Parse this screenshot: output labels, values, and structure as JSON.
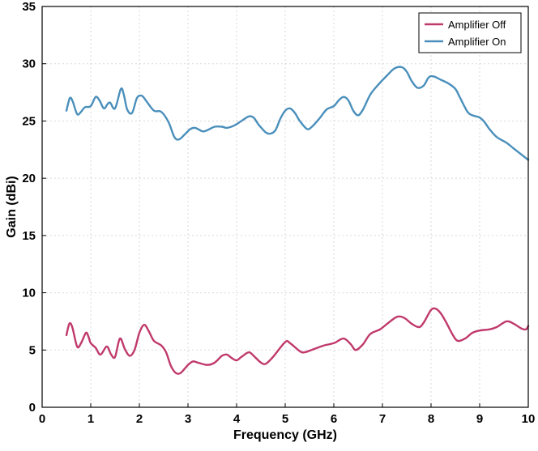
{
  "chart_data": {
    "type": "line",
    "title": "",
    "xlabel": "Frequency (GHz)",
    "ylabel": "Gain (dBi)",
    "xlim": [
      0,
      10
    ],
    "ylim": [
      0,
      35
    ],
    "x_ticks": [
      0,
      1,
      2,
      3,
      4,
      5,
      6,
      7,
      8,
      9,
      10
    ],
    "y_ticks": [
      0,
      5,
      10,
      15,
      20,
      25,
      30,
      35
    ],
    "x_tick_labels": [
      "0",
      "1",
      "2",
      "3",
      "4",
      "5",
      "6",
      "7",
      "8",
      "9",
      "10"
    ],
    "y_tick_labels": [
      "0",
      "5",
      "10",
      "15",
      "20",
      "25",
      "30",
      "35"
    ],
    "grid": true,
    "legend_position": "top-right",
    "series": [
      {
        "name": "Amplifier Off",
        "color": "#c0396b",
        "points": [
          [
            0.5,
            6.3
          ],
          [
            0.56,
            7.3
          ],
          [
            0.62,
            7.0
          ],
          [
            0.72,
            5.3
          ],
          [
            0.8,
            5.6
          ],
          [
            0.9,
            6.5
          ],
          [
            0.95,
            6.2
          ],
          [
            1.0,
            5.6
          ],
          [
            1.1,
            5.2
          ],
          [
            1.2,
            4.6
          ],
          [
            1.33,
            5.3
          ],
          [
            1.42,
            4.6
          ],
          [
            1.5,
            4.4
          ],
          [
            1.6,
            6.0
          ],
          [
            1.7,
            5.1
          ],
          [
            1.8,
            4.5
          ],
          [
            1.9,
            5.0
          ],
          [
            2.0,
            6.5
          ],
          [
            2.1,
            7.2
          ],
          [
            2.2,
            6.6
          ],
          [
            2.3,
            5.8
          ],
          [
            2.45,
            5.4
          ],
          [
            2.55,
            4.8
          ],
          [
            2.65,
            3.6
          ],
          [
            2.75,
            3.0
          ],
          [
            2.85,
            3.0
          ],
          [
            3.0,
            3.7
          ],
          [
            3.1,
            4.0
          ],
          [
            3.2,
            3.9
          ],
          [
            3.4,
            3.7
          ],
          [
            3.55,
            3.9
          ],
          [
            3.7,
            4.5
          ],
          [
            3.8,
            4.6
          ],
          [
            3.9,
            4.3
          ],
          [
            4.0,
            4.1
          ],
          [
            4.1,
            4.4
          ],
          [
            4.25,
            4.8
          ],
          [
            4.35,
            4.5
          ],
          [
            4.5,
            3.9
          ],
          [
            4.6,
            3.8
          ],
          [
            4.75,
            4.4
          ],
          [
            5.0,
            5.7
          ],
          [
            5.1,
            5.6
          ],
          [
            5.3,
            4.9
          ],
          [
            5.4,
            4.8
          ],
          [
            5.6,
            5.1
          ],
          [
            5.8,
            5.4
          ],
          [
            6.0,
            5.6
          ],
          [
            6.2,
            6.0
          ],
          [
            6.35,
            5.5
          ],
          [
            6.45,
            5.0
          ],
          [
            6.6,
            5.5
          ],
          [
            6.75,
            6.4
          ],
          [
            6.95,
            6.8
          ],
          [
            7.1,
            7.3
          ],
          [
            7.3,
            7.9
          ],
          [
            7.45,
            7.8
          ],
          [
            7.6,
            7.3
          ],
          [
            7.75,
            7.0
          ],
          [
            7.85,
            7.4
          ],
          [
            8.0,
            8.5
          ],
          [
            8.1,
            8.6
          ],
          [
            8.2,
            8.2
          ],
          [
            8.3,
            7.5
          ],
          [
            8.45,
            6.3
          ],
          [
            8.55,
            5.8
          ],
          [
            8.7,
            6.0
          ],
          [
            8.85,
            6.5
          ],
          [
            9.0,
            6.7
          ],
          [
            9.2,
            6.8
          ],
          [
            9.35,
            7.0
          ],
          [
            9.55,
            7.5
          ],
          [
            9.7,
            7.3
          ],
          [
            9.85,
            6.9
          ],
          [
            9.95,
            6.8
          ],
          [
            10.0,
            7.1
          ]
        ]
      },
      {
        "name": "Amplifier On",
        "color": "#4a8fbb",
        "points": [
          [
            0.5,
            25.9
          ],
          [
            0.57,
            27.0
          ],
          [
            0.63,
            26.7
          ],
          [
            0.72,
            25.6
          ],
          [
            0.8,
            25.8
          ],
          [
            0.88,
            26.2
          ],
          [
            1.0,
            26.3
          ],
          [
            1.1,
            27.1
          ],
          [
            1.18,
            26.8
          ],
          [
            1.27,
            26.1
          ],
          [
            1.35,
            26.5
          ],
          [
            1.4,
            26.6
          ],
          [
            1.5,
            26.1
          ],
          [
            1.62,
            27.8
          ],
          [
            1.68,
            27.3
          ],
          [
            1.75,
            26.0
          ],
          [
            1.85,
            25.7
          ],
          [
            1.95,
            27.0
          ],
          [
            2.05,
            27.2
          ],
          [
            2.15,
            26.7
          ],
          [
            2.3,
            25.9
          ],
          [
            2.45,
            25.8
          ],
          [
            2.6,
            24.9
          ],
          [
            2.72,
            23.6
          ],
          [
            2.82,
            23.4
          ],
          [
            2.95,
            23.9
          ],
          [
            3.05,
            24.3
          ],
          [
            3.15,
            24.4
          ],
          [
            3.3,
            24.1
          ],
          [
            3.4,
            24.2
          ],
          [
            3.55,
            24.5
          ],
          [
            3.7,
            24.5
          ],
          [
            3.8,
            24.4
          ],
          [
            3.95,
            24.6
          ],
          [
            4.1,
            25.0
          ],
          [
            4.25,
            25.4
          ],
          [
            4.35,
            25.3
          ],
          [
            4.45,
            24.7
          ],
          [
            4.6,
            24.0
          ],
          [
            4.7,
            23.9
          ],
          [
            4.8,
            24.2
          ],
          [
            4.9,
            25.2
          ],
          [
            5.0,
            25.9
          ],
          [
            5.1,
            26.1
          ],
          [
            5.2,
            25.7
          ],
          [
            5.3,
            25.0
          ],
          [
            5.45,
            24.3
          ],
          [
            5.55,
            24.5
          ],
          [
            5.7,
            25.2
          ],
          [
            5.85,
            26.0
          ],
          [
            6.0,
            26.3
          ],
          [
            6.1,
            26.8
          ],
          [
            6.2,
            27.1
          ],
          [
            6.3,
            26.8
          ],
          [
            6.4,
            25.9
          ],
          [
            6.5,
            25.5
          ],
          [
            6.6,
            26.0
          ],
          [
            6.75,
            27.3
          ],
          [
            6.9,
            28.1
          ],
          [
            7.1,
            29.0
          ],
          [
            7.25,
            29.6
          ],
          [
            7.4,
            29.7
          ],
          [
            7.5,
            29.3
          ],
          [
            7.6,
            28.5
          ],
          [
            7.72,
            27.9
          ],
          [
            7.85,
            28.1
          ],
          [
            7.95,
            28.8
          ],
          [
            8.05,
            28.9
          ],
          [
            8.2,
            28.6
          ],
          [
            8.35,
            28.3
          ],
          [
            8.5,
            27.8
          ],
          [
            8.6,
            27.0
          ],
          [
            8.75,
            25.8
          ],
          [
            8.85,
            25.5
          ],
          [
            9.0,
            25.3
          ],
          [
            9.1,
            24.9
          ],
          [
            9.2,
            24.3
          ],
          [
            9.35,
            23.6
          ],
          [
            9.55,
            23.1
          ],
          [
            9.7,
            22.6
          ],
          [
            9.85,
            22.1
          ],
          [
            10.0,
            21.6
          ]
        ]
      }
    ]
  },
  "legend": {
    "items": [
      {
        "label": "Amplifier Off",
        "color": "#c0396b"
      },
      {
        "label": "Amplifier On",
        "color": "#4a8fbb"
      }
    ]
  }
}
